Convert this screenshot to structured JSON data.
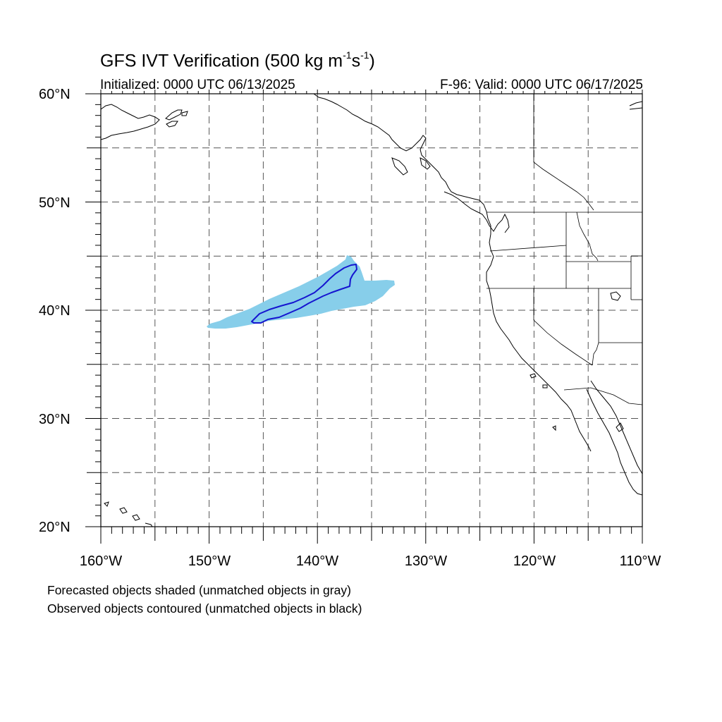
{
  "title": {
    "prefix": "GFS IVT Verification (500 kg m",
    "exp1": "-1",
    "mid": "s",
    "exp2": "-1",
    "suffix": ")"
  },
  "initialized": "Initialized: 0000 UTC 06/13/2025",
  "valid": "F-96: Valid: 0000 UTC 06/17/2025",
  "lat_labels": [
    "60°N",
    "50°N",
    "40°N",
    "30°N",
    "20°N"
  ],
  "lon_labels": [
    "160°W",
    "150°W",
    "140°W",
    "130°W",
    "120°W",
    "110°W"
  ],
  "notes": [
    "Forecasted objects shaded (unmatched objects in gray)",
    "Observed objects contoured (unmatched objects in black)"
  ],
  "colors": {
    "forecast_fill": "#87ceea",
    "observed_contour": "#1515d0",
    "coastline": "#000000",
    "grid": "#555555"
  },
  "map": {
    "lon_range": [
      -160,
      -110
    ],
    "lat_range": [
      20,
      60
    ],
    "grid_step_deg": 5
  }
}
